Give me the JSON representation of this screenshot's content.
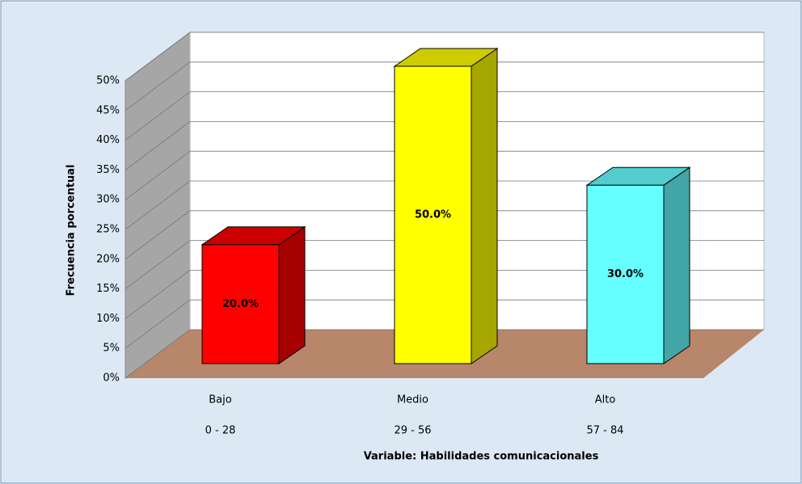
{
  "chart_data": {
    "type": "bar3d",
    "y_axis_label": "Frecuencia porcentual",
    "x_axis_label": "Variable: Habilidades comunicacionales",
    "categories": [
      "Bajo",
      "Medio",
      "Alto"
    ],
    "ranges": [
      "0 - 28",
      "29 - 56",
      "57 - 84"
    ],
    "values": [
      20,
      50,
      30
    ],
    "value_labels": [
      "20.0%",
      "50.0%",
      "30.0%"
    ],
    "colors": [
      "#ff0000",
      "#ffff00",
      "#66ffff"
    ],
    "ylim": [
      0,
      50
    ],
    "yticks": [
      {
        "value": 0,
        "label": "0%"
      },
      {
        "value": 5,
        "label": "5%"
      },
      {
        "value": 10,
        "label": "10%"
      },
      {
        "value": 15,
        "label": "15%"
      },
      {
        "value": 20,
        "label": "20%"
      },
      {
        "value": 25,
        "label": "25%"
      },
      {
        "value": 30,
        "label": "30%"
      },
      {
        "value": 35,
        "label": "35%"
      },
      {
        "value": 40,
        "label": "40%"
      },
      {
        "value": 45,
        "label": "45%"
      },
      {
        "value": 50,
        "label": "50%"
      }
    ],
    "grid": true
  }
}
